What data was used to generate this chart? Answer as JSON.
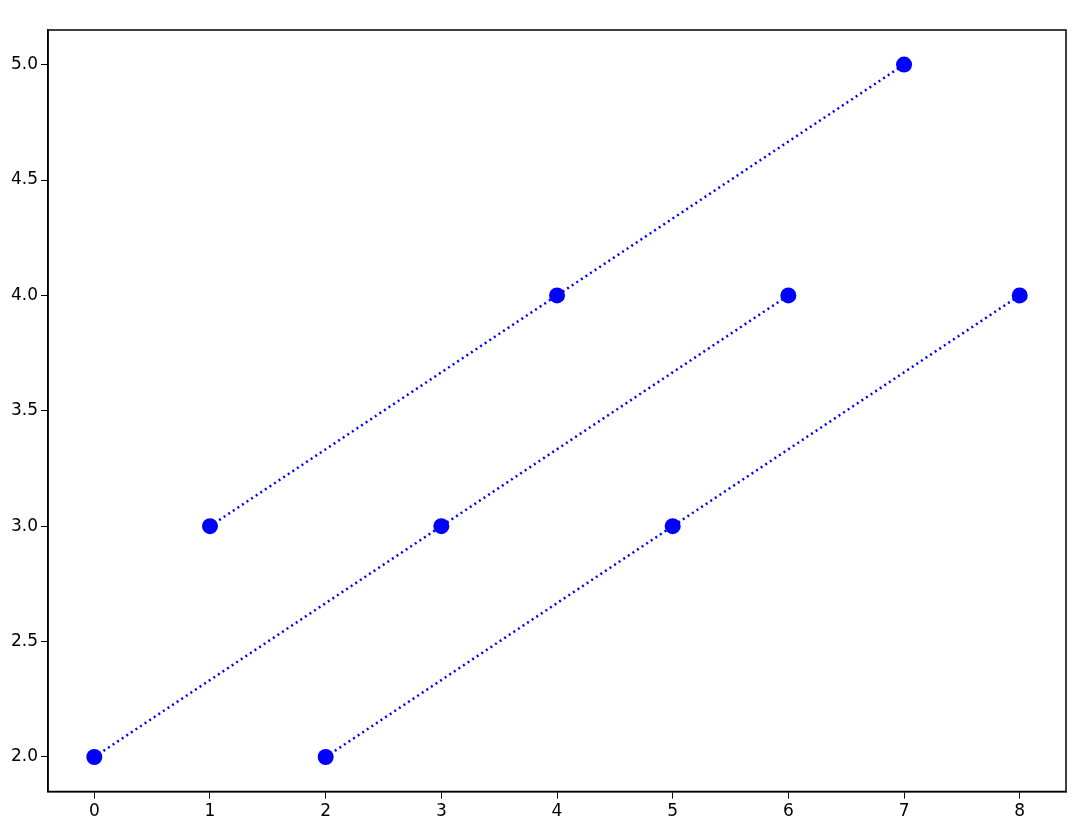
{
  "chart_data": {
    "type": "line",
    "xlim": [
      -0.4,
      8.4
    ],
    "xticks": [
      0,
      1,
      2,
      3,
      4,
      5,
      6,
      7,
      8
    ],
    "ylim": [
      1.85,
      5.15
    ],
    "yticks": [
      {
        "value": 2,
        "label": "2.0"
      },
      {
        "value": 2.5,
        "label": "2.5"
      },
      {
        "value": 3,
        "label": "3.0"
      },
      {
        "value": 3.5,
        "label": "3.5"
      },
      {
        "value": 4,
        "label": "4.0"
      },
      {
        "value": 4.5,
        "label": "4.5"
      },
      {
        "value": 5,
        "label": "5.0"
      }
    ],
    "grid": false,
    "legend": false,
    "marker": "circle",
    "line_style": "dotted",
    "series": [
      {
        "color": "#0000ff",
        "x": [
          1,
          4,
          7
        ],
        "values": [
          3,
          4,
          5
        ]
      },
      {
        "color": "#0000ff",
        "x": [
          0,
          3,
          6
        ],
        "values": [
          2,
          3,
          4
        ]
      },
      {
        "color": "#0000ff",
        "x": [
          2,
          5,
          8
        ],
        "values": [
          2,
          3,
          4
        ]
      }
    ]
  }
}
